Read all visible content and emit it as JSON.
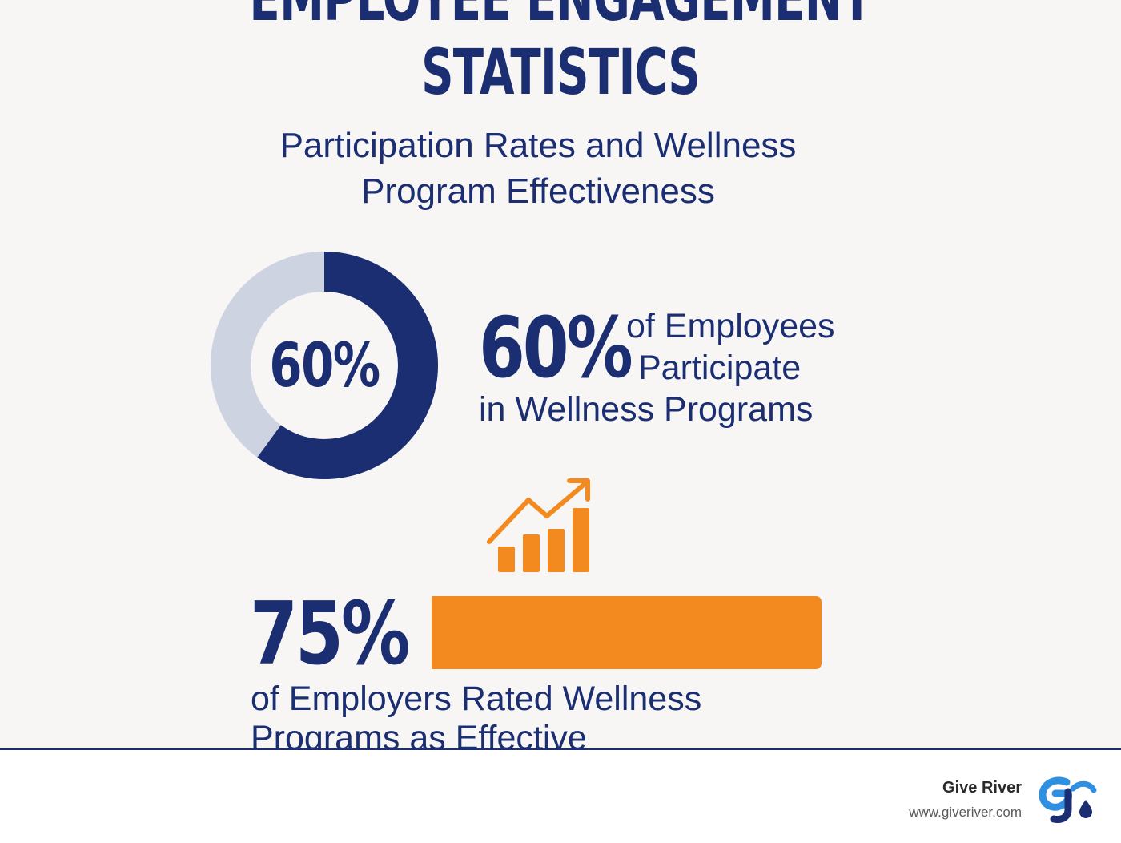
{
  "title": {
    "line1": "EMPLOYEE ENGAGEMENT",
    "line2": "STATISTICS"
  },
  "subtitle": {
    "line1": "Participation Rates and Wellness",
    "line2": "Program Effectiveness"
  },
  "participation": {
    "value": 60,
    "donut_label": "60%",
    "big_value": "60%",
    "text_line1": "of Employees",
    "text_line2": "Participate",
    "text_line3": "in Wellness Programs"
  },
  "effectiveness": {
    "value": 75,
    "big_value": "75%",
    "text_line1": "of Employers Rated Wellness",
    "text_line2": "Programs as Effective"
  },
  "footer": {
    "brand_name": "Give River",
    "brand_url": "www.giveriver.com"
  },
  "icons": {
    "trend": "bar-chart-trend-up-icon",
    "logo": "give-river-logo"
  },
  "colors": {
    "navy": "#1c2e72",
    "donut_track": "#cdd3e0",
    "orange": "#f28a20",
    "background": "#f7f6f4",
    "logo_blue": "#2f8fe0"
  }
}
